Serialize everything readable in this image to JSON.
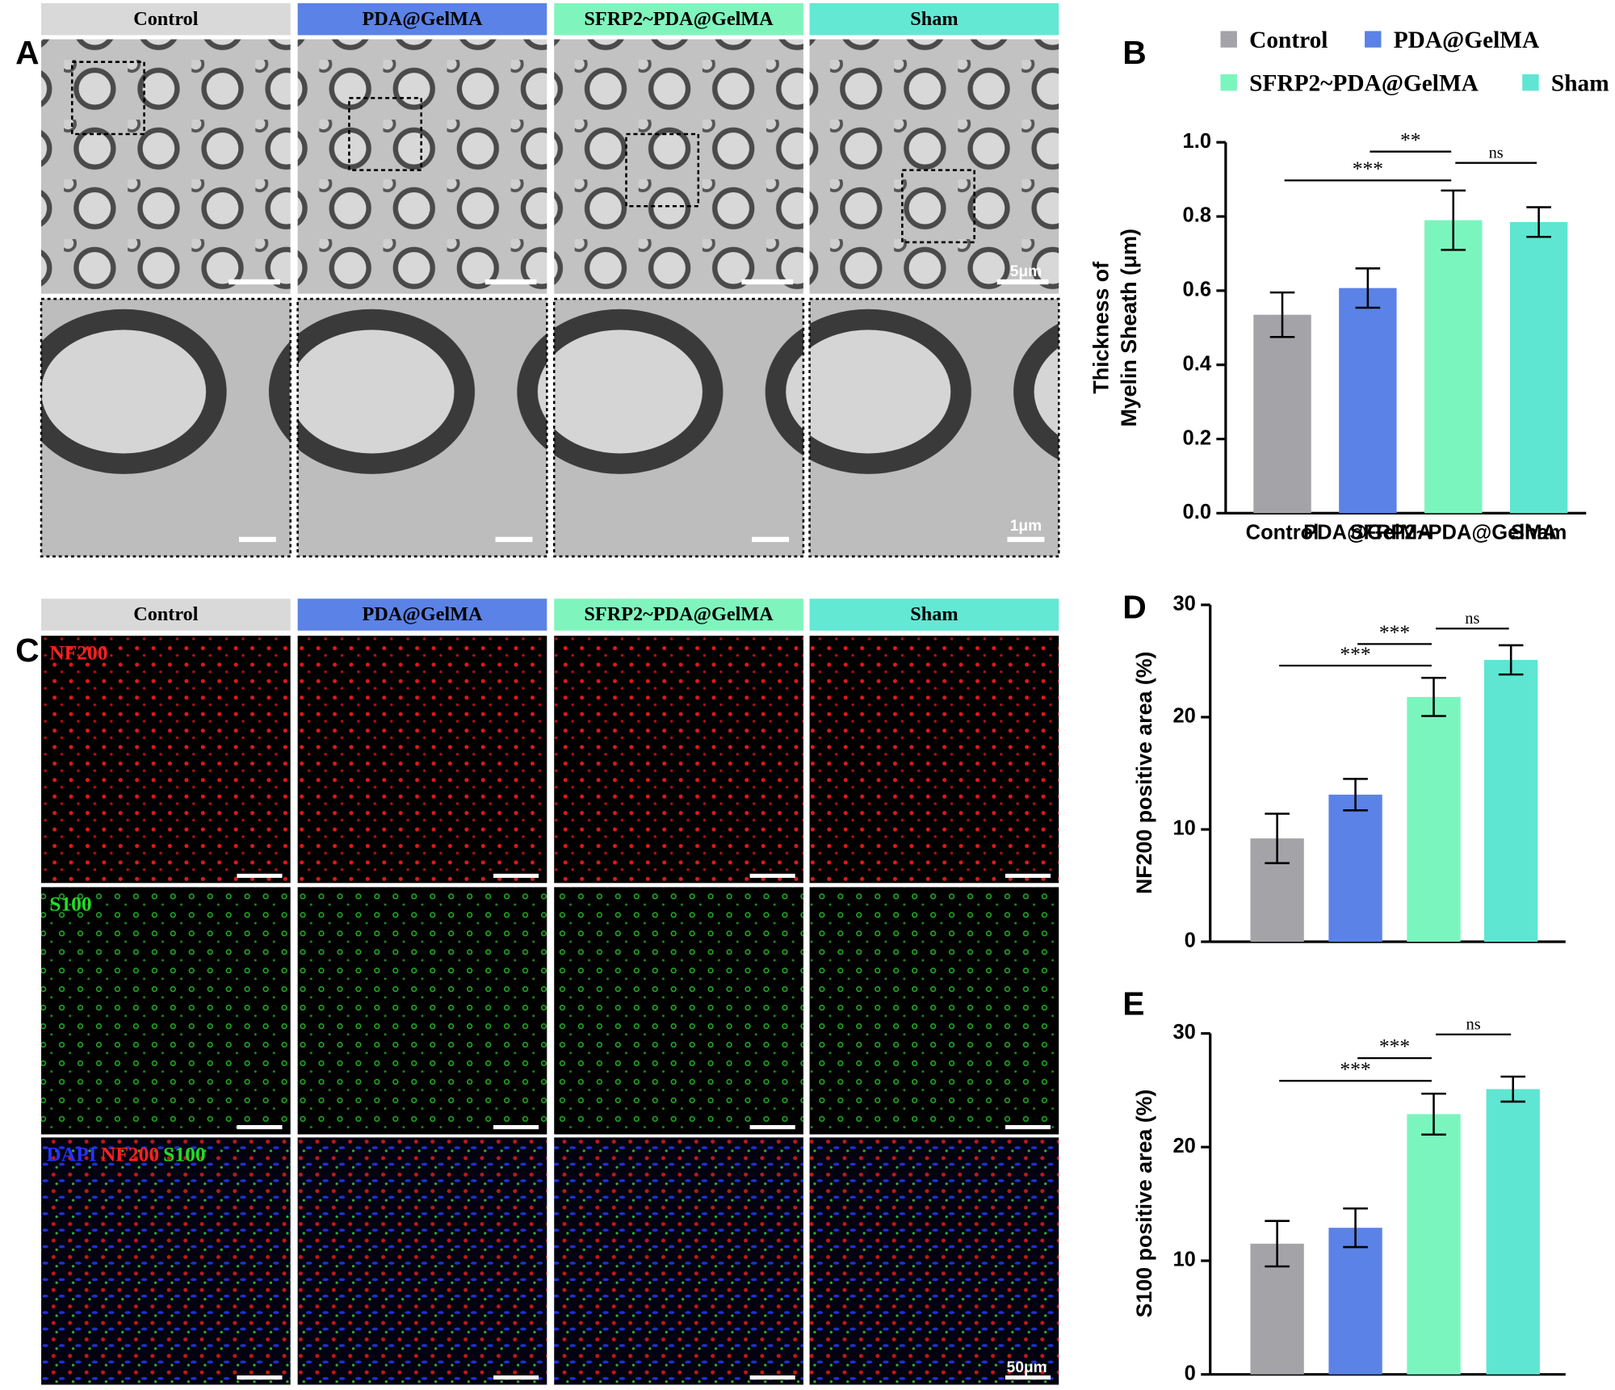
{
  "panel_letters": [
    "A",
    "B",
    "C",
    "D",
    "E"
  ],
  "column_headers": [
    {
      "text": "Control",
      "color": "#d9d9d9"
    },
    {
      "text": "PDA@GelMA",
      "color": "#5b82e6"
    },
    {
      "text": "SFRP2~PDA@GelMA",
      "color": "#7ff5bd"
    },
    {
      "text": "Sham",
      "color": "#62e8d3"
    }
  ],
  "stain_labels": [
    {
      "text": "NF200",
      "color": "#ff2020"
    },
    {
      "text": "S100",
      "color": "#22dd22"
    },
    {
      "text": "DAPI",
      "color": "#2233ff"
    },
    {
      "text": "NF200",
      "color": "#ff2020"
    },
    {
      "text": "S100",
      "color": "#22dd22"
    }
  ],
  "scale_labels": [
    "5μm",
    "1μm",
    "50μm"
  ],
  "chart_data": [
    {
      "type": "bar",
      "ylabel": [
        "Thickness of",
        "Myelin Sheath (μm)"
      ],
      "categories": [
        "Control",
        "PDA@GelMA",
        "SFRP2~PDA@GelMA",
        "Sham"
      ],
      "colors": [
        "#a3a3a8",
        "#5b82e6",
        "#7bf5be",
        "#5ee6d2"
      ],
      "values": [
        0.535,
        0.607,
        0.79,
        0.785
      ],
      "errors": [
        0.06,
        0.053,
        0.08,
        0.04
      ],
      "ylim": [
        0,
        1
      ],
      "yticks": [
        {
          "value": 0,
          "label": "0.0"
        },
        0.2,
        0.4,
        0.6,
        0.8,
        {
          "value": 1,
          "label": "1.0"
        }
      ],
      "legend": true,
      "annotations": [
        {
          "text": "***",
          "pair": [
            0,
            2
          ]
        },
        {
          "text": "**",
          "pair": [
            1,
            2
          ]
        },
        {
          "text": "ns",
          "pair": [
            2,
            3
          ]
        }
      ]
    },
    {
      "type": "bar",
      "ylabel": [
        "NF200 positive area (%)"
      ],
      "categories": [
        null,
        null,
        null,
        null
      ],
      "colors": [
        "#a3a3a8",
        "#5b82e6",
        "#7bf5be",
        "#5ee6d2"
      ],
      "values": [
        9.2,
        13.1,
        21.8,
        25.1
      ],
      "errors": [
        2.2,
        1.4,
        1.7,
        1.3
      ],
      "ylim": [
        0,
        30
      ],
      "yticks": [
        0,
        10,
        20,
        30
      ],
      "legend": false,
      "annotations": [
        {
          "text": "***",
          "pair": [
            0,
            2
          ]
        },
        {
          "text": "***",
          "pair": [
            1,
            2
          ]
        },
        {
          "text": "ns",
          "pair": [
            2,
            3
          ]
        }
      ]
    },
    {
      "type": "bar",
      "ylabel": [
        "S100 positive area (%)"
      ],
      "categories": [
        null,
        null,
        null,
        null
      ],
      "colors": [
        "#a3a3a8",
        "#5b82e6",
        "#7bf5be",
        "#5ee6d2"
      ],
      "values": [
        11.5,
        12.9,
        22.9,
        25.1
      ],
      "errors": [
        2.0,
        1.7,
        1.8,
        1.1
      ],
      "ylim": [
        0,
        30
      ],
      "yticks": [
        0,
        10,
        20,
        30
      ],
      "legend": false,
      "annotations": [
        {
          "text": "***",
          "pair": [
            0,
            2
          ]
        },
        {
          "text": "***",
          "pair": [
            1,
            2
          ]
        },
        {
          "text": "ns",
          "pair": [
            2,
            3
          ]
        }
      ]
    }
  ]
}
